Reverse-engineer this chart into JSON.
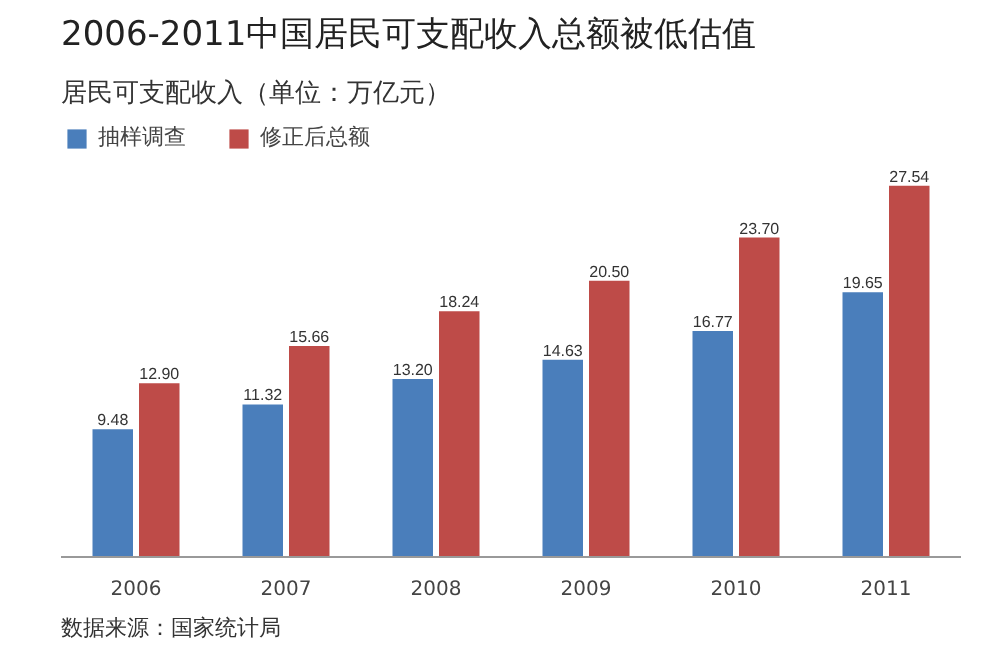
{
  "chart_data": {
    "type": "bar",
    "title": "2006-2011中国居民可支配收入总额被低估值",
    "subtitle": "居民可支配收入（单位：万亿元）",
    "categories": [
      "2006",
      "2007",
      "2008",
      "2009",
      "2010",
      "2011"
    ],
    "series": [
      {
        "name": "抽样调查",
        "color": "#4a7ebb",
        "values": [
          9.48,
          11.32,
          13.2,
          14.63,
          16.77,
          19.65
        ],
        "value_labels": [
          "9.48",
          "11.32",
          "13.20",
          "14.63",
          "16.77",
          "19.65"
        ]
      },
      {
        "name": "修正后总额",
        "color": "#be4b48",
        "values": [
          12.9,
          15.66,
          18.24,
          20.5,
          23.7,
          27.54
        ],
        "value_labels": [
          "12.90",
          "15.66",
          "18.24",
          "20.50",
          "23.70",
          "27.54"
        ]
      }
    ],
    "legend": "top left",
    "annotations": [
      "数据来源：国家统计局"
    ]
  }
}
